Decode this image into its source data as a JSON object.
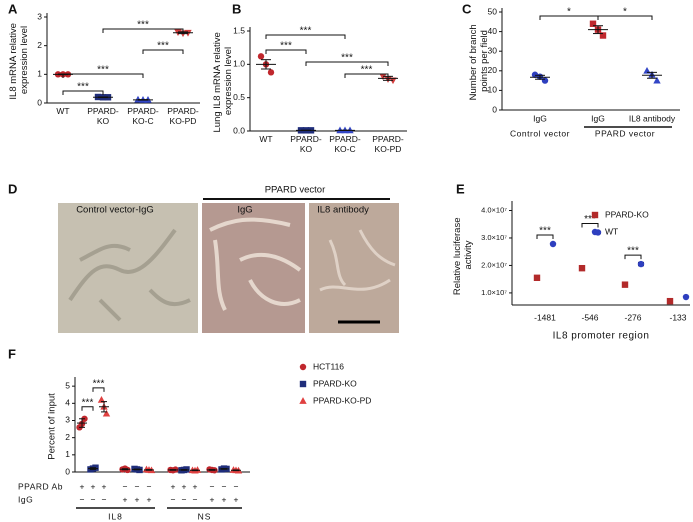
{
  "chart_data": [
    {
      "type": "dot",
      "panel": "A",
      "ylabel": "IL8 mRNA relative expression level",
      "categories": [
        "WT",
        "PPARD-KO",
        "PPARD-KO-C",
        "PPARD-KO-PD"
      ],
      "points": [
        [
          1.0,
          1.0,
          1.0
        ],
        [
          0.21,
          0.2,
          0.2
        ],
        [
          0.12,
          0.11,
          0.11
        ],
        [
          2.47,
          2.43,
          2.45
        ]
      ],
      "values": [
        1.0,
        0.2,
        0.11,
        2.45
      ],
      "errors": [
        0.01,
        0.01,
        0.01,
        0.03
      ],
      "colors": [
        "#c0272d",
        "#1f2d7a",
        "#3346c6",
        "#d23c3c"
      ],
      "markers": [
        "circle",
        "square",
        "triangle",
        "triangle-down"
      ],
      "ylim": [
        0,
        3
      ],
      "yticks": [
        0,
        1,
        2,
        3
      ],
      "significance": [
        {
          "pair": [
            0,
            2
          ],
          "label": "***"
        },
        {
          "pair": [
            0,
            1
          ],
          "label": "***"
        },
        {
          "pair": [
            1,
            3
          ],
          "label": "***"
        },
        {
          "pair": [
            2,
            3
          ],
          "label": "***"
        }
      ]
    },
    {
      "type": "dot",
      "panel": "B",
      "ylabel": "Lung IL8 mRNA relative expression level",
      "categories": [
        "WT",
        "PPARD-KO",
        "PPARD-KO-C",
        "PPARD-KO-PD"
      ],
      "points": [
        [
          1.12,
          1.0,
          0.88
        ],
        [
          0.01,
          0.01,
          0.01
        ],
        [
          0.01,
          0.01,
          0.01
        ],
        [
          0.82,
          0.78,
          0.76
        ]
      ],
      "values": [
        1.0,
        0.01,
        0.01,
        0.79
      ],
      "errors": [
        0.07,
        0,
        0,
        0.03
      ],
      "colors": [
        "#c0272d",
        "#1f2d7a",
        "#3346c6",
        "#d23c3c"
      ],
      "markers": [
        "circle",
        "square",
        "triangle",
        "triangle-down"
      ],
      "ylim": [
        0,
        1.5
      ],
      "yticks": [
        {
          "value": 0,
          "label": "0.0"
        },
        0.5,
        {
          "value": 1,
          "label": "1.0"
        },
        1.5
      ],
      "significance": [
        {
          "pair": [
            0,
            1
          ],
          "label": "***"
        },
        {
          "pair": [
            0,
            2
          ],
          "label": "***"
        },
        {
          "pair": [
            1,
            3
          ],
          "label": "***"
        },
        {
          "pair": [
            2,
            3
          ],
          "label": "***"
        }
      ]
    },
    {
      "type": "dot",
      "panel": "C",
      "ylabel": "Number of branch points per field",
      "categories": [
        "IgG",
        "IgG",
        "IL8 antibody"
      ],
      "groups": [
        {
          "label": "Control vector",
          "categories": [
            0
          ]
        },
        {
          "label": "PPARD vector",
          "categories": [
            1,
            2
          ]
        }
      ],
      "points": [
        [
          18,
          17,
          15
        ],
        [
          44,
          41,
          38
        ],
        [
          20,
          18,
          15
        ]
      ],
      "values": [
        16.7,
        41,
        17.7
      ],
      "errors": [
        1,
        2,
        1.5
      ],
      "colors": [
        "#2e3fbf",
        "#c0272d",
        "#3346c6"
      ],
      "markers": [
        "circle",
        "square",
        "triangle"
      ],
      "ylim": [
        0,
        50
      ],
      "yticks": [
        0,
        10,
        20,
        30,
        40,
        50
      ],
      "significance": [
        {
          "pair": [
            0,
            1
          ],
          "label": "*"
        },
        {
          "pair": [
            1,
            2
          ],
          "label": "*"
        }
      ]
    },
    {
      "type": "strip",
      "panel": "E",
      "ylabel": "Relative luciferase activity",
      "xlabel": "IL8 promoter region",
      "categories": [
        "-1481",
        "-546",
        "-276",
        "-133"
      ],
      "series": [
        {
          "name": "PPARD-KO",
          "color": "#b22a2a",
          "marker": "square",
          "values": [
            15500000,
            19000000,
            13000000,
            7000000
          ],
          "errors": [
            500000,
            800000,
            400000,
            300000
          ]
        },
        {
          "name": "WT",
          "color": "#2e3fbf",
          "marker": "circle",
          "values": [
            27800000,
            32000000,
            20500000,
            8500000
          ],
          "errors": [
            300000,
            400000,
            600000,
            200000
          ]
        }
      ],
      "ylim": [
        5600000,
        42000000
      ],
      "yticks": [
        {
          "value": 10000000,
          "label": "1.0×10⁷"
        },
        {
          "value": 20000000,
          "label": "2.0×10⁷"
        },
        {
          "value": 30000000,
          "label": "3.0×10⁷"
        },
        {
          "value": 40000000,
          "label": "4.0×10⁷"
        }
      ],
      "legend": "top-right",
      "significance": [
        {
          "category": 0,
          "label": "***"
        },
        {
          "category": 1,
          "label": "***"
        },
        {
          "category": 2,
          "label": "***"
        }
      ]
    },
    {
      "type": "dotplot",
      "panel": "F",
      "ylabel": "Percent of input",
      "series": [
        {
          "name": "HCT116",
          "color": "#c0272d",
          "marker": "circle",
          "points": [
            [
              2.6,
              2.8,
              3.1
            ],
            [
              0.15,
              0.2,
              0.12
            ],
            [
              0.12,
              0.1,
              0.14
            ],
            [
              0.15,
              0.12,
              0.1
            ]
          ],
          "values": [
            2.85,
            0.16,
            0.12,
            0.12
          ],
          "errors": [
            0.25,
            0.03,
            0.02,
            0.02
          ]
        },
        {
          "name": "PPARD-KO",
          "color": "#1f2d7a",
          "marker": "square",
          "points": [
            [
              0.15,
              0.2,
              0.25
            ],
            [
              0.18,
              0.15,
              0.12
            ],
            [
              0.1,
              0.12,
              0.15
            ],
            [
              0.15,
              0.2,
              0.18
            ]
          ],
          "values": [
            0.2,
            0.15,
            0.12,
            0.18
          ],
          "errors": [
            0.05,
            0.02,
            0.02,
            0.02
          ]
        },
        {
          "name": "PPARD-KO-PD",
          "color": "#e04040",
          "marker": "triangle",
          "points": [
            [
              4.2,
              3.8,
              3.4
            ],
            [
              0.15,
              0.12,
              0.1
            ],
            [
              0.1,
              0.08,
              0.12
            ],
            [
              0.12,
              0.1,
              0.08
            ]
          ],
          "values": [
            3.8,
            0.12,
            0.1,
            0.1
          ],
          "errors": [
            0.3,
            0.02,
            0.02,
            0.02
          ]
        }
      ],
      "rows": [
        {
          "label": "PPARD Ab",
          "signs": [
            "+",
            "+",
            "+",
            "−",
            "−",
            "−",
            "+",
            "+",
            "+",
            "−",
            "−",
            "−"
          ]
        },
        {
          "label": "IgG",
          "signs": [
            "−",
            "−",
            "−",
            "+",
            "+",
            "+",
            "−",
            "−",
            "−",
            "+",
            "+",
            "+"
          ]
        }
      ],
      "groups": [
        {
          "label": "IL8"
        },
        {
          "label": "NS"
        }
      ],
      "ylim": [
        0,
        5.3
      ],
      "yticks": [
        0,
        1,
        2,
        3,
        4,
        5
      ],
      "legend": "right",
      "significance": [
        {
          "series": [
            0,
            1
          ],
          "label": "***"
        },
        {
          "series": [
            1,
            2
          ],
          "label": "***"
        }
      ]
    }
  ],
  "panel_d": {
    "label": "D",
    "group": "PPARD vector",
    "captions": [
      "Control vector-IgG",
      "IgG",
      "IL8 antibody"
    ]
  }
}
